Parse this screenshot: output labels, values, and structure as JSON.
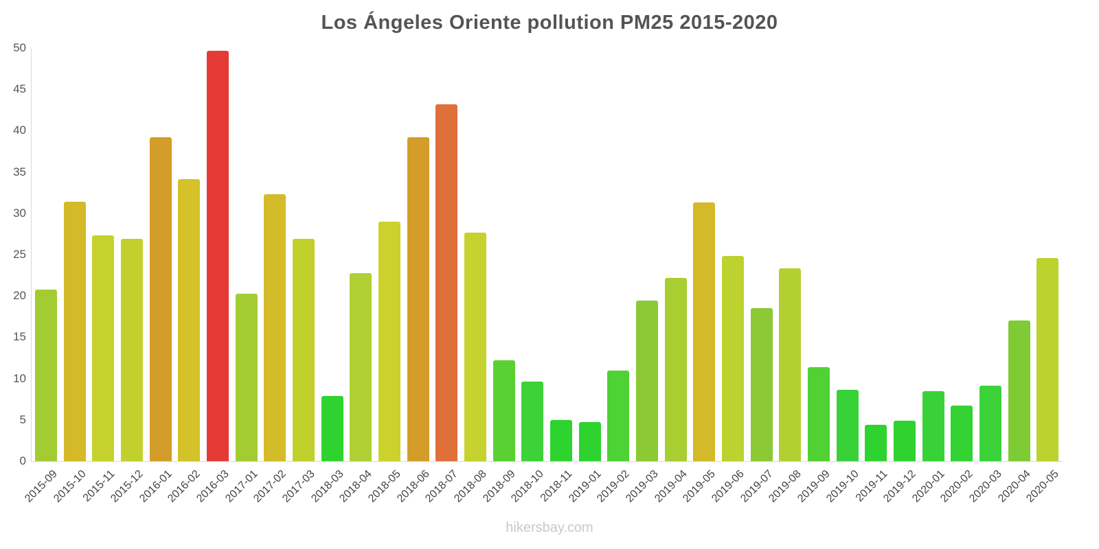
{
  "chart_data": {
    "type": "bar",
    "title": "Los Ángeles Oriente pollution PM25 2015-2020",
    "xlabel": "",
    "ylabel": "",
    "ylim": [
      0,
      50
    ],
    "yticks": [
      0,
      5,
      10,
      15,
      20,
      25,
      30,
      35,
      40,
      45,
      50
    ],
    "grid": false,
    "legend_position": "none",
    "categories": [
      "2015-09",
      "2015-10",
      "2015-11",
      "2015-12",
      "2016-01",
      "2016-02",
      "2016-03",
      "2017-01",
      "2017-02",
      "2017-03",
      "2018-03",
      "2018-04",
      "2018-05",
      "2018-06",
      "2018-07",
      "2018-08",
      "2018-09",
      "2018-10",
      "2018-11",
      "2019-01",
      "2019-02",
      "2019-03",
      "2019-04",
      "2019-05",
      "2019-06",
      "2019-07",
      "2019-08",
      "2019-09",
      "2019-10",
      "2019-11",
      "2019-12",
      "2020-01",
      "2020-02",
      "2020-03",
      "2020-04",
      "2020-05"
    ],
    "values": [
      20.8,
      31.4,
      27.3,
      26.9,
      39.2,
      34.1,
      49.7,
      20.3,
      32.3,
      26.9,
      7.9,
      22.8,
      29.0,
      39.2,
      43.2,
      27.7,
      12.2,
      9.6,
      5.0,
      4.7,
      11.0,
      19.4,
      22.2,
      31.3,
      24.8,
      18.5,
      23.3,
      11.4,
      8.6,
      4.4,
      4.9,
      8.5,
      6.7,
      9.1,
      17.0,
      24.6
    ],
    "bar_colors": [
      "#a3cc33",
      "#d4b929",
      "#c6d22d",
      "#c2d02e",
      "#d49c28",
      "#d4c228",
      "#e53a35",
      "#a3cc33",
      "#d4bb29",
      "#c2d02e",
      "#2fd32f",
      "#aed032",
      "#ccd22b",
      "#d49c28",
      "#e0703a",
      "#c6d22d",
      "#5ad133",
      "#3dd23a",
      "#2fd32f",
      "#2fd32f",
      "#4ed235",
      "#8cc934",
      "#a8ce32",
      "#d4b929",
      "#bcd22f",
      "#8cc934",
      "#b2d031",
      "#52d134",
      "#38d238",
      "#2fd32f",
      "#2fd32f",
      "#38d238",
      "#32d332",
      "#3bd23a",
      "#7ecb36",
      "#bcd22f"
    ],
    "axis_color": "#d8d8d8",
    "tick_label_color": "#555555",
    "x_label_color": "#444444",
    "title_color": "#545454"
  },
  "credits": {
    "label": "hikersbay.com"
  }
}
